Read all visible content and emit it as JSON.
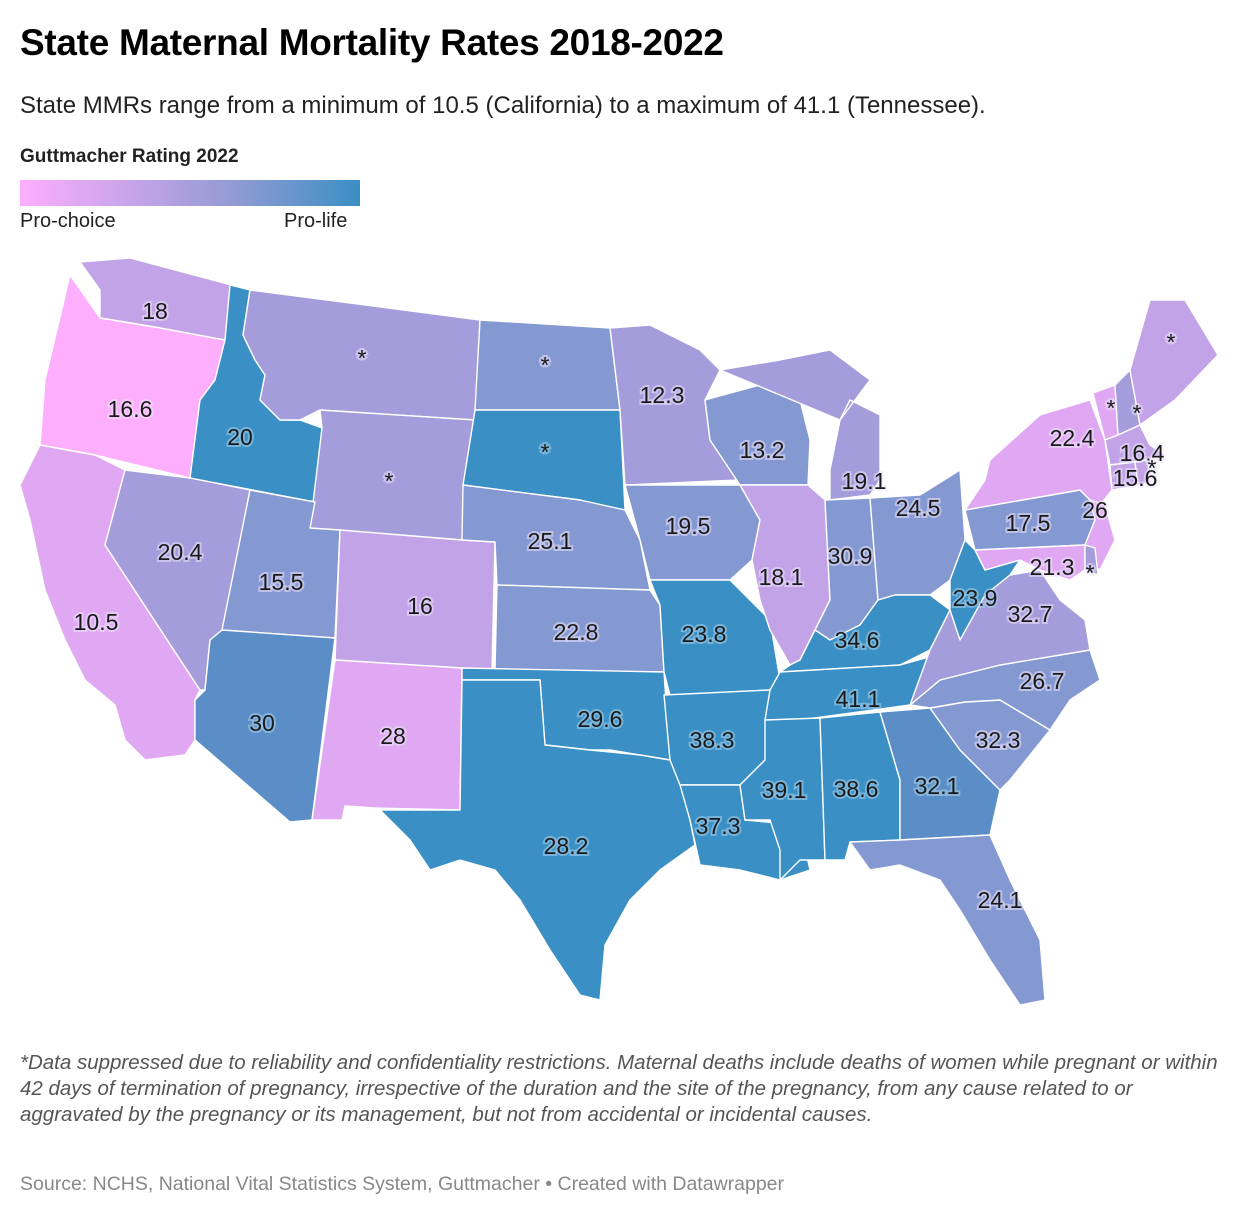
{
  "title": "State Maternal Mortality Rates 2018-2022",
  "subtitle": "State MMRs range from a minimum of 10.5 (California) to a maximum of 41.1 (Tennessee).",
  "legend": {
    "title": "Guttmacher Rating 2022",
    "low_label": "Pro-choice",
    "high_label": "Pro-life",
    "colors": [
      "#fdaefd",
      "#e0a8f3",
      "#c3a3e8",
      "#a49cdb",
      "#8498d1",
      "#5b8ec6",
      "#3a8fc4"
    ]
  },
  "notes": "*Data suppressed due to reliability and confidentiality restrictions. Maternal deaths include deaths of women while pregnant or within 42 days of termination of pregnancy, irrespective of the duration and the site of the pregnancy, from any cause related to or aggravated by the pregnancy or its management, but not from accidental or incidental causes.",
  "source": "Source: NCHS, National Vital Statistics System, Guttmacher • Created with Datawrapper",
  "chart_data": {
    "type": "choropleth",
    "title": "State Maternal Mortality Rates 2018-2022",
    "value_label": "Maternal mortality rate",
    "color_variable": "Guttmacher Rating 2022 (0 = Pro-choice … 6 = Pro-life)",
    "states": [
      {
        "code": "WA",
        "name": "Washington",
        "mmr": "18",
        "rating": 2
      },
      {
        "code": "OR",
        "name": "Oregon",
        "mmr": "16.6",
        "rating": 0
      },
      {
        "code": "CA",
        "name": "California",
        "mmr": "10.5",
        "rating": 1
      },
      {
        "code": "ID",
        "name": "Idaho",
        "mmr": "20",
        "rating": 6
      },
      {
        "code": "NV",
        "name": "Nevada",
        "mmr": "20.4",
        "rating": 3
      },
      {
        "code": "MT",
        "name": "Montana",
        "mmr": "*",
        "rating": 3
      },
      {
        "code": "WY",
        "name": "Wyoming",
        "mmr": "*",
        "rating": 3
      },
      {
        "code": "UT",
        "name": "Utah",
        "mmr": "15.5",
        "rating": 4
      },
      {
        "code": "AZ",
        "name": "Arizona",
        "mmr": "30",
        "rating": 5
      },
      {
        "code": "CO",
        "name": "Colorado",
        "mmr": "16",
        "rating": 2
      },
      {
        "code": "NM",
        "name": "New Mexico",
        "mmr": "28",
        "rating": 1
      },
      {
        "code": "ND",
        "name": "North Dakota",
        "mmr": "*",
        "rating": 4
      },
      {
        "code": "SD",
        "name": "South Dakota",
        "mmr": "*",
        "rating": 6
      },
      {
        "code": "NE",
        "name": "Nebraska",
        "mmr": "25.1",
        "rating": 4
      },
      {
        "code": "KS",
        "name": "Kansas",
        "mmr": "22.8",
        "rating": 4
      },
      {
        "code": "OK",
        "name": "Oklahoma",
        "mmr": "29.6",
        "rating": 6
      },
      {
        "code": "TX",
        "name": "Texas",
        "mmr": "28.2",
        "rating": 6
      },
      {
        "code": "MN",
        "name": "Minnesota",
        "mmr": "12.3",
        "rating": 3
      },
      {
        "code": "IA",
        "name": "Iowa",
        "mmr": "19.5",
        "rating": 4
      },
      {
        "code": "MO",
        "name": "Missouri",
        "mmr": "23.8",
        "rating": 6
      },
      {
        "code": "AR",
        "name": "Arkansas",
        "mmr": "38.3",
        "rating": 6
      },
      {
        "code": "LA",
        "name": "Louisiana",
        "mmr": "37.3",
        "rating": 6
      },
      {
        "code": "WI",
        "name": "Wisconsin",
        "mmr": "13.2",
        "rating": 4
      },
      {
        "code": "IL",
        "name": "Illinois",
        "mmr": "18.1",
        "rating": 2
      },
      {
        "code": "MI",
        "name": "Michigan",
        "mmr": "19.1",
        "rating": 3
      },
      {
        "code": "IN",
        "name": "Indiana",
        "mmr": "30.9",
        "rating": 4
      },
      {
        "code": "OH",
        "name": "Ohio",
        "mmr": "24.5",
        "rating": 4
      },
      {
        "code": "KY",
        "name": "Kentucky",
        "mmr": "34.6",
        "rating": 6
      },
      {
        "code": "TN",
        "name": "Tennessee",
        "mmr": "41.1",
        "rating": 6
      },
      {
        "code": "MS",
        "name": "Mississippi",
        "mmr": "39.1",
        "rating": 6
      },
      {
        "code": "AL",
        "name": "Alabama",
        "mmr": "38.6",
        "rating": 6
      },
      {
        "code": "GA",
        "name": "Georgia",
        "mmr": "32.1",
        "rating": 5
      },
      {
        "code": "FL",
        "name": "Florida",
        "mmr": "24.1",
        "rating": 4
      },
      {
        "code": "SC",
        "name": "South Carolina",
        "mmr": "32.3",
        "rating": 4
      },
      {
        "code": "NC",
        "name": "North Carolina",
        "mmr": "26.7",
        "rating": 4
      },
      {
        "code": "VA",
        "name": "Virginia",
        "mmr": "32.7",
        "rating": 3
      },
      {
        "code": "WV",
        "name": "West Virginia",
        "mmr": "23.9",
        "rating": 6
      },
      {
        "code": "PA",
        "name": "Pennsylvania",
        "mmr": "17.5",
        "rating": 4
      },
      {
        "code": "NY",
        "name": "New York",
        "mmr": "22.4",
        "rating": 1
      },
      {
        "code": "NJ",
        "name": "New Jersey",
        "mmr": "26",
        "rating": 1
      },
      {
        "code": "MD",
        "name": "Maryland",
        "mmr": "21.3",
        "rating": 1
      },
      {
        "code": "DE",
        "name": "Delaware",
        "mmr": "*",
        "rating": 3
      },
      {
        "code": "VT",
        "name": "Vermont",
        "mmr": "*",
        "rating": 1
      },
      {
        "code": "NH",
        "name": "New Hampshire",
        "mmr": "*",
        "rating": 3
      },
      {
        "code": "ME",
        "name": "Maine",
        "mmr": "*",
        "rating": 2
      },
      {
        "code": "MA",
        "name": "Massachusetts",
        "mmr": "16.4",
        "rating": 2
      },
      {
        "code": "CT",
        "name": "Connecticut",
        "mmr": "15.6",
        "rating": 2
      },
      {
        "code": "RI",
        "name": "Rhode Island",
        "mmr": "*",
        "rating": 2
      }
    ]
  }
}
